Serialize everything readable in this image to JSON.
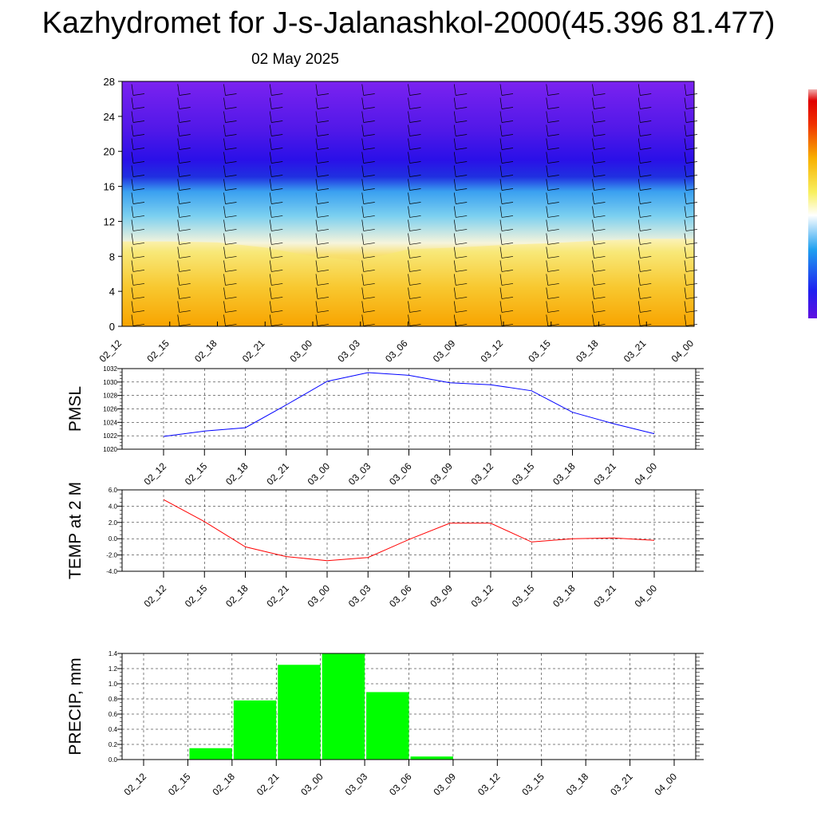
{
  "header": {
    "title": "Kazhydromet for J-s-Jalanashkol-2000(45.396 81.477)",
    "date": "02 May 2025"
  },
  "colors": {
    "pmsl_line": "#0000ff",
    "temp_line": "#ff0000",
    "precip_bar": "#00ff00",
    "cross_section": [
      "#7b22f0",
      "#2a10e8",
      "#3aa0f0",
      "#f6f4dc",
      "#f8e070",
      "#f8a800"
    ]
  },
  "chart_data": [
    {
      "type": "heatmap",
      "name": "cross-section",
      "xlabel": "",
      "ylabel": "",
      "ylim": [
        0,
        28
      ],
      "yticks": [
        "0",
        "4",
        "8",
        "12",
        "16",
        "20",
        "24",
        "28"
      ],
      "categories": [
        "02_12",
        "02_15",
        "02_18",
        "02_21",
        "03_00",
        "03_03",
        "03_06",
        "03_09",
        "03_12",
        "03_15",
        "03_18",
        "03_21",
        "04_00"
      ],
      "freezing_boundary": [
        9.7,
        9.7,
        9.6,
        9.0,
        8.0,
        7.5,
        8.8,
        9.0,
        9.3,
        9.5,
        9.8,
        10.0,
        10.0
      ],
      "grid": false
    },
    {
      "type": "line",
      "name": "pmsl",
      "ylabel": "PMSL",
      "ylim": [
        1020,
        1032
      ],
      "yticks": [
        "1020",
        "1022",
        "1024",
        "1026",
        "1028",
        "1030",
        "1032"
      ],
      "categories": [
        "02_12",
        "02_15",
        "02_18",
        "02_21",
        "03_00",
        "03_03",
        "03_06",
        "03_09",
        "03_12",
        "03_15",
        "03_18",
        "03_21",
        "04_00"
      ],
      "values": [
        1021.9,
        1022.7,
        1023.2,
        1026.6,
        1030.1,
        1031.4,
        1031.0,
        1029.9,
        1029.6,
        1028.7,
        1025.5,
        1023.8,
        1022.3
      ],
      "grid": true
    },
    {
      "type": "line",
      "name": "temp",
      "ylabel": "TEMP at 2 M",
      "ylim": [
        -4,
        6
      ],
      "yticks": [
        "-4.0",
        "-2.0",
        "0.0",
        "2.0",
        "4.0",
        "6.0"
      ],
      "categories": [
        "02_12",
        "02_15",
        "02_18",
        "02_21",
        "03_00",
        "03_03",
        "03_06",
        "03_09",
        "03_12",
        "03_15",
        "03_18",
        "03_21",
        "04_00"
      ],
      "values": [
        4.8,
        2.1,
        -1.0,
        -2.2,
        -2.7,
        -2.3,
        -0.1,
        1.9,
        1.9,
        -0.4,
        0.0,
        0.1,
        -0.2
      ],
      "grid": true
    },
    {
      "type": "bar",
      "name": "precip",
      "ylabel": "PRECIP, mm",
      "ylim": [
        0,
        1.4
      ],
      "yticks": [
        "0.0",
        "0.2",
        "0.4",
        "0.6",
        "0.8",
        "1.0",
        "1.2",
        "1.4"
      ],
      "categories": [
        "02_12",
        "02_15",
        "02_18",
        "02_21",
        "03_00",
        "03_03",
        "03_06",
        "03_09",
        "03_12",
        "03_15",
        "03_18",
        "03_21",
        "04_00"
      ],
      "values": [
        0.0,
        0.15,
        0.78,
        1.25,
        1.4,
        0.89,
        0.04,
        0.0,
        0.0,
        0.0,
        0.0,
        0.0,
        0.0
      ],
      "grid": true
    }
  ]
}
